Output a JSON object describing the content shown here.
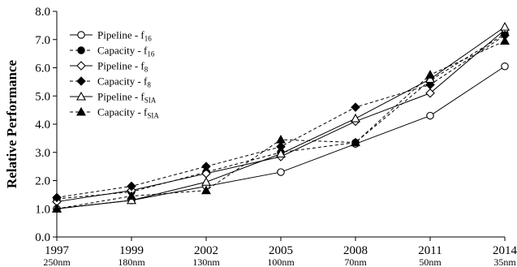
{
  "chart_data": {
    "type": "line",
    "title": "",
    "xlabel": "",
    "ylabel": "Relative Performance",
    "x": [
      "1997",
      "1999",
      "2002",
      "2005",
      "2008",
      "2011",
      "2014"
    ],
    "x_sublabels": [
      "250nm",
      "180nm",
      "130nm",
      "100nm",
      "70nm",
      "50nm",
      "35nm"
    ],
    "ylim": [
      0.0,
      8.0
    ],
    "yticks": [
      "0.0",
      "1.0",
      "2.0",
      "3.0",
      "4.0",
      "5.0",
      "6.0",
      "7.0",
      "8.0"
    ],
    "grid": false,
    "legend_position": "top-left",
    "series": [
      {
        "name": "Pipeline - f",
        "sub": "16",
        "style": "solid",
        "marker": "circle-open",
        "values": [
          1.0,
          1.3,
          1.8,
          2.3,
          3.3,
          4.3,
          6.05
        ]
      },
      {
        "name": "Capacity - f",
        "sub": "16",
        "style": "dashed",
        "marker": "circle-filled",
        "values": [
          1.35,
          1.6,
          2.3,
          3.0,
          3.35,
          5.55,
          7.2
        ]
      },
      {
        "name": "Pipeline - f",
        "sub": "8",
        "style": "solid",
        "marker": "diamond-open",
        "values": [
          1.25,
          1.65,
          2.25,
          2.85,
          4.1,
          5.1,
          7.35
        ]
      },
      {
        "name": "Capacity - f",
        "sub": "8",
        "style": "dashed",
        "marker": "diamond-filled",
        "values": [
          1.4,
          1.8,
          2.5,
          3.2,
          4.6,
          5.4,
          7.15
        ]
      },
      {
        "name": "Pipeline - f",
        "sub": "SIA",
        "style": "solid",
        "marker": "triangle-open",
        "values": [
          1.0,
          1.3,
          1.95,
          2.95,
          4.2,
          5.6,
          7.45
        ]
      },
      {
        "name": "Capacity - f",
        "sub": "SIA",
        "style": "dashed",
        "marker": "triangle-filled",
        "values": [
          1.0,
          1.45,
          1.65,
          3.45,
          3.35,
          5.75,
          6.95
        ]
      }
    ]
  }
}
